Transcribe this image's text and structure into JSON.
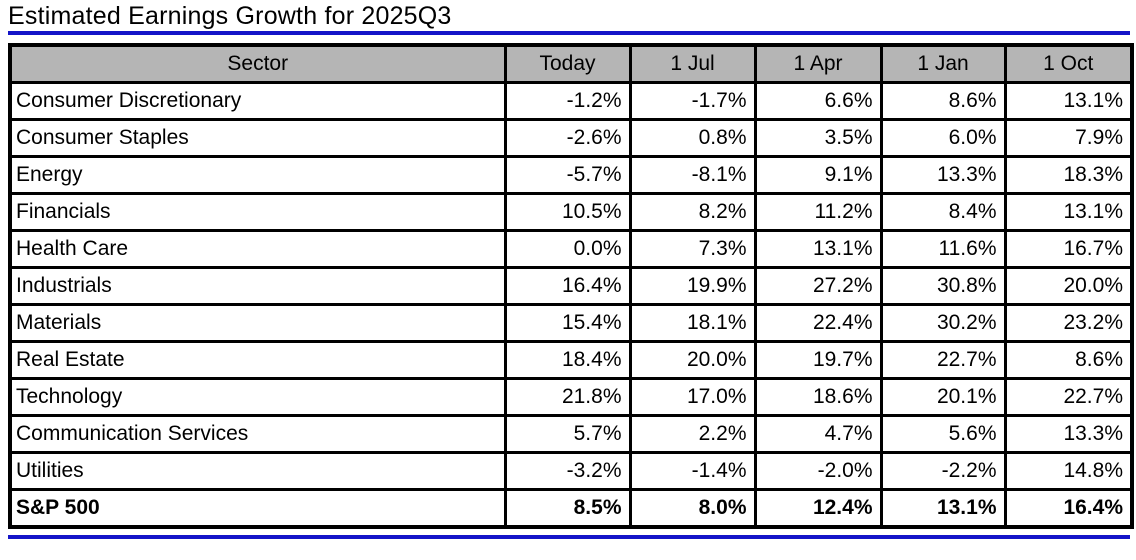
{
  "title": "Estimated Earnings Growth for 2025Q3",
  "colors": {
    "accent_blue": "#1414c8",
    "header_gray": "#b5b5b5",
    "border_black": "#000000"
  },
  "chart_data": {
    "type": "table",
    "title": "Estimated Earnings Growth for 2025Q3",
    "units": "percent",
    "columns": [
      "Sector",
      "Today",
      "1 Jul",
      "1 Apr",
      "1 Jan",
      "1 Oct"
    ],
    "rows": [
      {
        "sector": "Consumer Discretionary",
        "values": [
          "-1.2%",
          "-1.7%",
          "6.6%",
          "8.6%",
          "13.1%"
        ]
      },
      {
        "sector": "Consumer Staples",
        "values": [
          "-2.6%",
          "0.8%",
          "3.5%",
          "6.0%",
          "7.9%"
        ]
      },
      {
        "sector": "Energy",
        "values": [
          "-5.7%",
          "-8.1%",
          "9.1%",
          "13.3%",
          "18.3%"
        ]
      },
      {
        "sector": "Financials",
        "values": [
          "10.5%",
          "8.2%",
          "11.2%",
          "8.4%",
          "13.1%"
        ]
      },
      {
        "sector": "Health Care",
        "values": [
          "0.0%",
          "7.3%",
          "13.1%",
          "11.6%",
          "16.7%"
        ]
      },
      {
        "sector": "Industrials",
        "values": [
          "16.4%",
          "19.9%",
          "27.2%",
          "30.8%",
          "20.0%"
        ]
      },
      {
        "sector": "Materials",
        "values": [
          "15.4%",
          "18.1%",
          "22.4%",
          "30.2%",
          "23.2%"
        ]
      },
      {
        "sector": "Real Estate",
        "values": [
          "18.4%",
          "20.0%",
          "19.7%",
          "22.7%",
          "8.6%"
        ]
      },
      {
        "sector": "Technology",
        "values": [
          "21.8%",
          "17.0%",
          "18.6%",
          "20.1%",
          "22.7%"
        ]
      },
      {
        "sector": "Communication Services",
        "values": [
          "5.7%",
          "2.2%",
          "4.7%",
          "5.6%",
          "13.3%"
        ]
      },
      {
        "sector": "Utilities",
        "values": [
          "-3.2%",
          "-1.4%",
          "-2.0%",
          "-2.2%",
          "14.8%"
        ]
      }
    ],
    "total_row": {
      "sector": "S&P 500",
      "values": [
        "8.5%",
        "8.0%",
        "12.4%",
        "13.1%",
        "16.4%"
      ]
    }
  }
}
